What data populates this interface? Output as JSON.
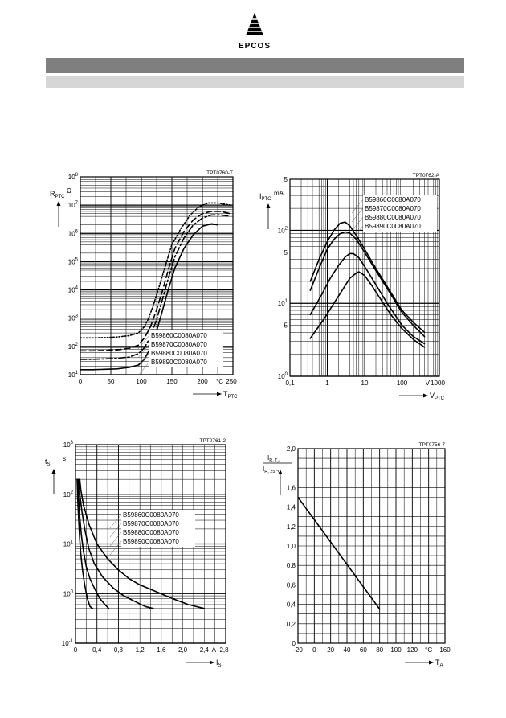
{
  "header": {
    "brand": "EPCOS",
    "colors": {
      "dark_bar": "#7f7f7f",
      "light_bar": "#d6d6d6"
    }
  },
  "chart_data": [
    {
      "id": "TPT0760-T",
      "type": "line",
      "yscale": "log",
      "xlim": [
        0,
        250
      ],
      "ylim": [
        10,
        100000000
      ],
      "xticks": [
        0,
        50,
        100,
        150,
        200,
        250
      ],
      "xtick_labels": [
        "0",
        "50",
        "100",
        "150",
        "200",
        "°C  250"
      ],
      "yticks": [
        10,
        100,
        1000,
        10000,
        100000,
        1000000,
        10000000,
        100000000
      ],
      "ytick_labels": [
        [
          "10",
          "1"
        ],
        [
          "10",
          "2"
        ],
        [
          "10",
          "3"
        ],
        [
          "10",
          "4"
        ],
        [
          "10",
          "5"
        ],
        [
          "10",
          "6"
        ],
        [
          "10",
          "7"
        ],
        [
          "10",
          "8"
        ]
      ],
      "ylabel": {
        "main": "R",
        "sub": "PTC"
      },
      "yunit": "Ω",
      "xlabel": {
        "main": "T",
        "sub": "PTC"
      },
      "legend": [
        "B59860C0080A070",
        "B59870C0080A070",
        "B59880C0080A070",
        "B59890C0080A070"
      ],
      "series": [
        {
          "name": "B59860C0080A070",
          "style": "dotted",
          "x": [
            0,
            20,
            40,
            60,
            80,
            95,
            105,
            112,
            120,
            130,
            140,
            150,
            165,
            180,
            195,
            210,
            225,
            245
          ],
          "y": [
            200,
            200,
            205,
            215,
            240,
            300,
            500,
            1000,
            3000,
            15000,
            80000,
            400000,
            1500000,
            4500000,
            9000000,
            12000000,
            12000000,
            10000000
          ]
        },
        {
          "name": "B59870C0080A070",
          "style": "dashed",
          "x": [
            0,
            20,
            40,
            60,
            80,
            95,
            105,
            115,
            125,
            135,
            145,
            155,
            170,
            185,
            200,
            215,
            230,
            245
          ],
          "y": [
            70,
            70,
            72,
            75,
            85,
            110,
            200,
            500,
            2000,
            10000,
            60000,
            300000,
            1200000,
            3000000,
            5000000,
            6000000,
            6000000,
            5000000
          ]
        },
        {
          "name": "B59880C0080A070",
          "style": "dash-dot",
          "x": [
            0,
            20,
            40,
            60,
            80,
            95,
            105,
            115,
            125,
            135,
            145,
            155,
            170,
            185,
            200,
            215,
            230,
            245
          ],
          "y": [
            35,
            35,
            36,
            38,
            42,
            55,
            90,
            220,
            900,
            5000,
            30000,
            150000,
            700000,
            2000000,
            3500000,
            4500000,
            4500000,
            4000000
          ]
        },
        {
          "name": "B59890C0080A070",
          "style": "solid",
          "x": [
            0,
            20,
            40,
            60,
            80,
            95,
            105,
            115,
            125,
            135,
            145,
            155,
            170,
            185,
            200,
            215,
            225
          ],
          "y": [
            15,
            15,
            15.5,
            16,
            18,
            22,
            35,
            90,
            350,
            2000,
            12000,
            60000,
            300000,
            900000,
            1800000,
            2200000,
            2000000
          ]
        }
      ]
    },
    {
      "id": "TPT0762-A",
      "type": "line",
      "xscale": "log",
      "yscale": "log",
      "xlim": [
        0.1,
        1000
      ],
      "ylim": [
        1,
        500
      ],
      "xticks": [
        0.1,
        1,
        10,
        100,
        1000
      ],
      "xtick_labels": [
        "0,1",
        "1",
        "10",
        "100",
        "V  1000"
      ],
      "yticks": [
        1,
        5,
        10,
        50,
        100,
        500
      ],
      "ytick_labels": [
        [
          "10",
          "0"
        ],
        [
          "5",
          ""
        ],
        [
          "10",
          "1"
        ],
        [
          "5",
          ""
        ],
        [
          "10",
          "2"
        ],
        [
          "5",
          ""
        ]
      ],
      "ylabel": {
        "main": "I",
        "sub": "PTC"
      },
      "yunit": "mA",
      "xlabel": {
        "main": "V",
        "sub": "PTC"
      },
      "legend": [
        "B59860C0080A070",
        "B59870C0080A070",
        "B59880C0080A070",
        "B59890C0080A070"
      ],
      "series": [
        {
          "name": "B59860C0080A070",
          "style": "solid",
          "x": [
            0.35,
            0.6,
            1,
            1.5,
            2.2,
            3,
            4,
            6,
            10,
            20,
            40,
            100,
            200,
            400
          ],
          "y": [
            20,
            40,
            70,
            100,
            125,
            130,
            115,
            85,
            55,
            30,
            17,
            8,
            5.5,
            4
          ]
        },
        {
          "name": "B59870C0080A070",
          "style": "solid",
          "x": [
            0.35,
            0.6,
            1,
            1.5,
            2.2,
            3,
            4,
            6,
            10,
            20,
            40,
            100,
            200,
            400
          ],
          "y": [
            15,
            30,
            55,
            75,
            90,
            95,
            92,
            75,
            50,
            28,
            16,
            7.5,
            5,
            3.5
          ]
        },
        {
          "name": "B59880C0080A070",
          "style": "solid",
          "x": [
            0.35,
            0.7,
            1.2,
            2,
            3,
            4,
            5,
            7,
            10,
            20,
            40,
            100,
            200,
            400
          ],
          "y": [
            7,
            13,
            22,
            33,
            43,
            48,
            48,
            42,
            32,
            18,
            10,
            5,
            3.5,
            2.8
          ]
        },
        {
          "name": "B59890C0080A070",
          "style": "solid",
          "x": [
            0.35,
            0.8,
            1.5,
            2.5,
            4,
            6,
            7,
            10,
            15,
            25,
            50,
            100,
            200,
            400
          ],
          "y": [
            3.3,
            6,
            10,
            15,
            22,
            26,
            27,
            24,
            18,
            12,
            7,
            4.5,
            3.2,
            2.5
          ]
        }
      ]
    },
    {
      "id": "TPT0761-2",
      "type": "line",
      "yscale": "log",
      "xlim": [
        0,
        2.8
      ],
      "ylim": [
        0.1,
        1000
      ],
      "xticks": [
        0,
        0.4,
        0.8,
        1.2,
        1.6,
        2.0,
        2.4,
        2.8
      ],
      "xtick_labels": [
        "0",
        "0,4",
        "0,8",
        "1,2",
        "1,6",
        "2,0",
        "2,4",
        "A  2,8"
      ],
      "yticks": [
        0.1,
        1,
        10,
        100,
        1000
      ],
      "ytick_labels": [
        [
          "10",
          "-1"
        ],
        [
          "10",
          "0"
        ],
        [
          "10",
          "1"
        ],
        [
          "10",
          "2"
        ],
        [
          "10",
          "3"
        ]
      ],
      "ylabel": {
        "main": "t",
        "sub": "S"
      },
      "yunit": "s",
      "xlabel": {
        "main": "I",
        "sub": "S"
      },
      "legend": [
        "B59860C0080A070",
        "B59870C0080A070",
        "B59880C0080A070",
        "B59890C0080A070"
      ],
      "series": [
        {
          "name": "B59860C0080A070",
          "style": "solid",
          "x": [
            0.08,
            0.1,
            0.15,
            0.25,
            0.4,
            0.6,
            0.8,
            1.0,
            1.2,
            1.5,
            1.8,
            2.1,
            2.4
          ],
          "y": [
            200,
            120,
            60,
            25,
            10,
            5,
            3,
            2,
            1.5,
            1.1,
            0.8,
            0.6,
            0.5
          ]
        },
        {
          "name": "B59870C0080A070",
          "style": "solid",
          "x": [
            0.06,
            0.08,
            0.12,
            0.18,
            0.25,
            0.35,
            0.5,
            0.7,
            0.9,
            1.1,
            1.3,
            1.45
          ],
          "y": [
            200,
            100,
            45,
            18,
            8,
            4,
            2.2,
            1.3,
            0.9,
            0.7,
            0.55,
            0.5
          ]
        },
        {
          "name": "B59880C0080A070",
          "style": "solid",
          "x": [
            0.04,
            0.06,
            0.08,
            0.11,
            0.15,
            0.2,
            0.27,
            0.35,
            0.45,
            0.55,
            0.62
          ],
          "y": [
            200,
            80,
            35,
            15,
            7,
            3.5,
            2,
            1.3,
            0.8,
            0.6,
            0.5
          ]
        },
        {
          "name": "B59890C0080A070",
          "style": "solid",
          "x": [
            0.03,
            0.04,
            0.06,
            0.08,
            0.1,
            0.13,
            0.17,
            0.22,
            0.27,
            0.32
          ],
          "y": [
            200,
            80,
            30,
            12,
            6,
            3,
            1.5,
            0.8,
            0.55,
            0.5
          ]
        }
      ]
    },
    {
      "id": "TPT0756-7",
      "type": "line",
      "xlim": [
        -20,
        160
      ],
      "ylim": [
        0,
        2.0
      ],
      "xticks": [
        -20,
        0,
        20,
        40,
        60,
        80,
        100,
        120,
        140,
        160
      ],
      "xtick_labels": [
        "-20",
        "0",
        "20",
        "40",
        "60",
        "80",
        "100",
        "120",
        "°C",
        "160"
      ],
      "yticks": [
        0,
        0.2,
        0.4,
        0.6,
        0.8,
        1.0,
        1.2,
        1.4,
        1.6,
        1.8,
        2.0
      ],
      "ytick_labels": [
        "0",
        "0,2",
        "0,4",
        "0,6",
        "0,8",
        "1,0",
        "1,2",
        "1,4",
        "1,6",
        "",
        "2,0"
      ],
      "ylabel": {
        "num": "I",
        "num_sub": "R, T",
        "num_sub2": "A",
        "den": "I",
        "den_sub": "R, 25 °C"
      },
      "xlabel": {
        "main": "T",
        "sub": "A"
      },
      "series": [
        {
          "name": "IR ratio",
          "style": "solid",
          "x": [
            -20,
            80
          ],
          "y": [
            1.5,
            0.35
          ]
        }
      ]
    }
  ]
}
